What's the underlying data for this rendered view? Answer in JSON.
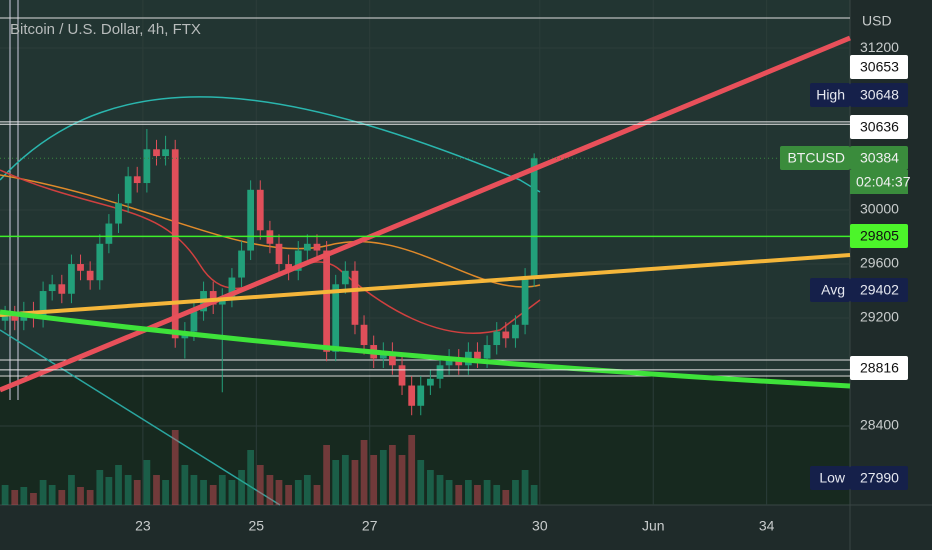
{
  "chart_data": {
    "type": "candlestick",
    "title": "Bitcoin / U.S. Dollar, 4h, FTX",
    "currency": "USD",
    "up_color": "#22a07a",
    "down_color": "#e04f5a",
    "x": [
      20.57,
      20.74,
      20.9,
      21.07,
      21.24,
      21.4,
      21.57,
      21.74,
      21.9,
      22.07,
      22.24,
      22.4,
      22.57,
      22.74,
      22.9,
      23.07,
      23.24,
      23.4,
      23.57,
      23.74,
      23.9,
      24.07,
      24.24,
      24.4,
      24.57,
      24.74,
      24.9,
      25.07,
      25.24,
      25.4,
      25.57,
      25.74,
      25.9,
      26.07,
      26.24,
      26.4,
      26.57,
      26.74,
      26.9,
      27.07,
      27.24,
      27.4,
      27.57,
      27.74,
      27.9,
      28.07,
      28.24,
      28.4,
      28.57,
      28.74,
      28.9,
      29.07,
      29.24,
      29.4,
      29.57,
      29.74,
      29.9
    ],
    "open": [
      29180,
      29220,
      29180,
      29250,
      29200,
      29400,
      29450,
      29380,
      29600,
      29550,
      29480,
      29750,
      29900,
      30050,
      30250,
      30200,
      30450,
      30400,
      30450,
      29050,
      29100,
      29250,
      29400,
      29300,
      29350,
      29500,
      29700,
      30150,
      29850,
      29750,
      29600,
      29550,
      29700,
      29750,
      29700,
      28950,
      29450,
      29550,
      29150,
      29000,
      28900,
      28950,
      28850,
      28700,
      28550,
      28700,
      28750,
      28850,
      28900,
      28850,
      28950,
      28900,
      29000,
      29100,
      29050,
      29150,
      29500
    ],
    "high": [
      29290,
      29290,
      29320,
      29320,
      29470,
      29520,
      29520,
      29670,
      29670,
      29620,
      29820,
      29970,
      30120,
      30320,
      30320,
      30600,
      30520,
      30550,
      30520,
      29170,
      29320,
      29470,
      29470,
      29420,
      29570,
      29770,
      30220,
      30220,
      29920,
      29820,
      29670,
      29770,
      29820,
      29820,
      29770,
      29520,
      29620,
      29620,
      29220,
      29070,
      29020,
      29020,
      28920,
      28770,
      28770,
      28820,
      28920,
      28970,
      28970,
      29020,
      29020,
      29070,
      29170,
      29170,
      29220,
      29570,
      30420
    ],
    "low": [
      29110,
      29110,
      29110,
      29130,
      29130,
      29330,
      29310,
      29310,
      29480,
      29410,
      29410,
      29680,
      29830,
      29980,
      30130,
      30130,
      30330,
      30330,
      28980,
      28900,
      29030,
      29180,
      29230,
      28650,
      29280,
      29430,
      29630,
      29780,
      29680,
      29530,
      29480,
      29480,
      29630,
      29630,
      28880,
      28880,
      29380,
      29080,
      28930,
      28830,
      28830,
      28780,
      28630,
      28480,
      28480,
      28630,
      28680,
      28780,
      28780,
      28780,
      28830,
      28830,
      28930,
      28980,
      28980,
      29080,
      29430
    ],
    "close": [
      29220,
      29180,
      29250,
      29200,
      29400,
      29450,
      29380,
      29600,
      29550,
      29480,
      29750,
      29900,
      30050,
      30250,
      30200,
      30450,
      30400,
      30450,
      29050,
      29100,
      29250,
      29400,
      29300,
      29350,
      29500,
      29700,
      30150,
      29850,
      29750,
      29600,
      29550,
      29700,
      29750,
      29700,
      28950,
      29450,
      29550,
      29150,
      29000,
      28900,
      28950,
      28850,
      28700,
      28550,
      28700,
      28750,
      28850,
      28900,
      28850,
      28950,
      28900,
      29000,
      29100,
      29050,
      29150,
      29500,
      30384
    ],
    "volume": [
      20,
      15,
      18,
      12,
      25,
      20,
      15,
      30,
      18,
      15,
      35,
      28,
      40,
      30,
      25,
      45,
      30,
      25,
      75,
      40,
      30,
      25,
      20,
      30,
      25,
      35,
      55,
      40,
      30,
      25,
      20,
      25,
      30,
      20,
      60,
      45,
      50,
      45,
      65,
      50,
      55,
      60,
      50,
      70,
      45,
      35,
      30,
      25,
      20,
      25,
      20,
      25,
      20,
      15,
      25,
      35,
      20
    ],
    "xlim": [
      20.48,
      35.47
    ],
    "xticks": [
      23,
      25,
      27,
      30,
      {
        "value": 32,
        "label": "Jun"
      },
      34
    ],
    "ylim": [
      27815,
      31556
    ],
    "yticks": [
      31200,
      30000,
      29600,
      29200,
      28400
    ],
    "grid": true,
    "price_labels": [
      {
        "value": 30653,
        "kind": "line"
      },
      {
        "label": "High",
        "value": 30648,
        "kind": "stat"
      },
      {
        "value": 30636,
        "kind": "line"
      },
      {
        "label": "BTCUSD",
        "value": 30384,
        "kind": "last",
        "countdown": "02:04:37"
      },
      {
        "value": 29805,
        "kind": "alert"
      },
      {
        "label": "Avg",
        "value": 29402,
        "kind": "stat"
      },
      {
        "value": 28816,
        "kind": "line"
      },
      {
        "label": "Low",
        "value": 27990,
        "kind": "stat"
      }
    ]
  }
}
